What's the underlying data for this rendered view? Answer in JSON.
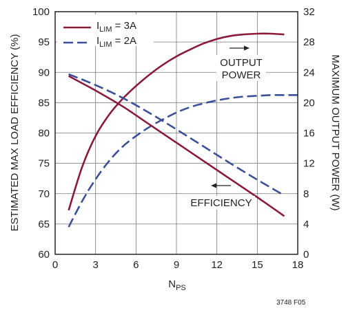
{
  "chart_data": {
    "type": "line",
    "title": "",
    "xlabel": {
      "main": "N",
      "sub": "PS"
    },
    "ylabel_left": "ESTIMATED MAX LOAD EFFICIENCY (%)",
    "ylabel_right": "MAXIMUM OUTPUT POWER (W)",
    "xlim": [
      0,
      18
    ],
    "ylim_left": [
      60,
      100
    ],
    "ylim_right": [
      0,
      32
    ],
    "x_ticks": [
      0,
      3,
      6,
      9,
      12,
      15,
      18
    ],
    "y_left_ticks": [
      60,
      65,
      70,
      75,
      80,
      85,
      90,
      95,
      100
    ],
    "y_right_ticks": [
      0,
      4,
      8,
      12,
      16,
      20,
      24,
      28,
      32
    ],
    "grid": true,
    "legend": {
      "placement": "top-left",
      "entries": [
        {
          "prefix": "I",
          "sub": "LIM",
          "suffix": " = 3A",
          "color": "#8B1A3A",
          "dash": "solid"
        },
        {
          "prefix": "I",
          "sub": "LIM",
          "suffix": " = 2A",
          "color": "#3A4F9A",
          "dash": "dashed"
        }
      ]
    },
    "annotations": {
      "output_power_line1": "OUTPUT",
      "output_power_line2": "POWER",
      "efficiency": "EFFICIENCY",
      "figure_id": "3748 F05"
    },
    "series": [
      {
        "legend_index": 0,
        "axis": "right",
        "color": "#8B1A3A",
        "dash": "solid",
        "points": [
          [
            1,
            5.8
          ],
          [
            2,
            11.5
          ],
          [
            3,
            15.6
          ],
          [
            4,
            18.4
          ],
          [
            5,
            20.5
          ],
          [
            6,
            22.2
          ],
          [
            7,
            23.7
          ],
          [
            8,
            25.0
          ],
          [
            9,
            26.1
          ],
          [
            10,
            27.0
          ],
          [
            11,
            27.8
          ],
          [
            12,
            28.4
          ],
          [
            13,
            28.8
          ],
          [
            14,
            29.0
          ],
          [
            15,
            29.1
          ],
          [
            16,
            29.1
          ],
          [
            17,
            29.0
          ]
        ]
      },
      {
        "legend_index": 1,
        "axis": "right",
        "color": "#3A4F9A",
        "dash": "dashed",
        "points": [
          [
            1,
            3.6
          ],
          [
            2,
            7.0
          ],
          [
            3,
            9.9
          ],
          [
            4,
            12.3
          ],
          [
            5,
            14.2
          ],
          [
            6,
            15.6
          ],
          [
            7,
            16.8
          ],
          [
            8,
            17.8
          ],
          [
            9,
            18.7
          ],
          [
            10,
            19.4
          ],
          [
            11,
            19.9
          ],
          [
            12,
            20.3
          ],
          [
            13,
            20.6
          ],
          [
            14,
            20.8
          ],
          [
            15,
            20.9
          ],
          [
            16,
            21.0
          ],
          [
            17,
            21.0
          ],
          [
            18,
            21.0
          ]
        ]
      },
      {
        "legend_index": 0,
        "axis": "left",
        "color": "#8B1A3A",
        "dash": "solid",
        "points": [
          [
            1,
            89.4
          ],
          [
            3,
            87.0
          ],
          [
            5,
            84.4
          ],
          [
            7,
            81.4
          ],
          [
            9,
            78.4
          ],
          [
            11,
            75.4
          ],
          [
            13,
            72.4
          ],
          [
            15,
            69.4
          ],
          [
            17,
            66.3
          ]
        ]
      },
      {
        "legend_index": 1,
        "axis": "left",
        "color": "#3A4F9A",
        "dash": "dashed",
        "points": [
          [
            1,
            89.7
          ],
          [
            3,
            87.9
          ],
          [
            5,
            85.8
          ],
          [
            7,
            83.3
          ],
          [
            9,
            80.6
          ],
          [
            11,
            77.8
          ],
          [
            13,
            75.0
          ],
          [
            15,
            72.3
          ],
          [
            17,
            69.7
          ]
        ]
      }
    ]
  }
}
